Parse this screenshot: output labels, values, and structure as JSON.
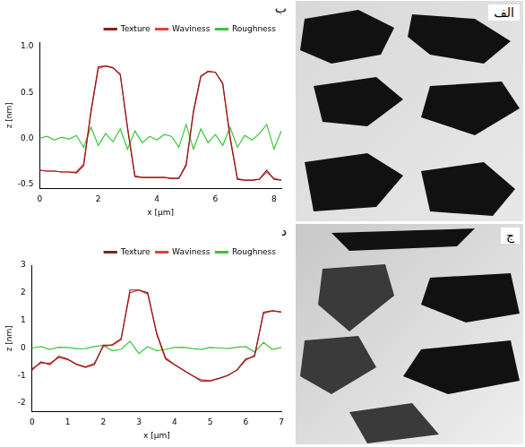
{
  "chart_data": [
    {
      "panel": "ب",
      "type": "line",
      "x_label": "x [µm]",
      "y_label": "z [nm]",
      "x": [
        0,
        0.25,
        0.5,
        0.75,
        1,
        1.25,
        1.5,
        1.75,
        2,
        2.25,
        2.5,
        2.75,
        3,
        3.25,
        3.5,
        3.75,
        4,
        4.25,
        4.5,
        4.75,
        5,
        5.25,
        5.5,
        5.75,
        6,
        6.25,
        6.5,
        6.75,
        7,
        7.25,
        7.5,
        7.75,
        8,
        8.25
      ],
      "series": [
        {
          "name": "Texture",
          "color": "#8b1c1c",
          "values": [
            -0.35,
            -0.36,
            -0.36,
            -0.37,
            -0.37,
            -0.38,
            -0.3,
            0.3,
            0.78,
            0.79,
            0.77,
            0.7,
            0.1,
            -0.42,
            -0.43,
            -0.43,
            -0.43,
            -0.43,
            -0.44,
            -0.44,
            -0.3,
            0.3,
            0.68,
            0.73,
            0.72,
            0.6,
            0,
            -0.45,
            -0.46,
            -0.46,
            -0.45,
            -0.35,
            -0.45,
            -0.46
          ]
        },
        {
          "name": "Waviness",
          "color": "#e0413a",
          "values": [
            -0.35,
            -0.36,
            -0.36,
            -0.37,
            -0.37,
            -0.37,
            -0.28,
            0.28,
            0.76,
            0.79,
            0.77,
            0.69,
            0.12,
            -0.41,
            -0.43,
            -0.43,
            -0.43,
            -0.43,
            -0.44,
            -0.44,
            -0.28,
            0.28,
            0.67,
            0.73,
            0.72,
            0.59,
            0.02,
            -0.44,
            -0.46,
            -0.46,
            -0.45,
            -0.37,
            -0.44,
            -0.46
          ]
        },
        {
          "name": "Roughness",
          "color": "#3cc43c",
          "values": [
            0,
            0.02,
            -0.02,
            0.01,
            -0.01,
            0.03,
            -0.1,
            0.12,
            -0.08,
            0.05,
            -0.04,
            0.1,
            -0.12,
            0.08,
            -0.05,
            0.02,
            -0.02,
            0.04,
            0.02,
            -0.1,
            0.15,
            -0.12,
            0.1,
            -0.05,
            0.04,
            -0.08,
            0.12,
            -0.1,
            0.03,
            -0.02,
            0.05,
            0.15,
            -0.12,
            0.08
          ]
        }
      ],
      "xlim": [
        0,
        8.25
      ],
      "xticks": [
        0,
        2,
        4,
        6,
        8
      ],
      "ylim": [
        -0.55,
        1.05
      ],
      "yticks": [
        -0.5,
        {
          "value": 0,
          "label": "0.0"
        },
        0.5,
        {
          "value": 1,
          "label": "1.0"
        }
      ],
      "legend": "top-right",
      "grid": false
    },
    {
      "panel": "د",
      "type": "line",
      "x_label": "x [µm]",
      "y_label": "z [nm]",
      "x": [
        0,
        0.25,
        0.5,
        0.75,
        1,
        1.25,
        1.5,
        1.75,
        2,
        2.25,
        2.5,
        2.75,
        3,
        3.25,
        3.5,
        3.75,
        4,
        4.25,
        4.5,
        4.75,
        5,
        5.25,
        5.5,
        5.75,
        6,
        6.25,
        6.5,
        6.75,
        7
      ],
      "series": [
        {
          "name": "Texture",
          "color": "#8b1c1c",
          "values": [
            -0.8,
            -0.5,
            -0.6,
            -0.3,
            -0.4,
            -0.6,
            -0.7,
            -0.6,
            0.1,
            0.1,
            0.3,
            2.1,
            2.1,
            2.0,
            0.5,
            -0.4,
            -0.6,
            -0.8,
            -1.0,
            -1.2,
            -1.2,
            -1.1,
            -1.0,
            -0.8,
            -0.4,
            -0.3,
            1.3,
            1.35,
            1.3
          ]
        },
        {
          "name": "Waviness",
          "color": "#e0413a",
          "values": [
            -0.75,
            -0.55,
            -0.55,
            -0.35,
            -0.42,
            -0.58,
            -0.68,
            -0.55,
            0.05,
            0.12,
            0.35,
            2.0,
            2.1,
            1.95,
            0.55,
            -0.35,
            -0.6,
            -0.8,
            -1.0,
            -1.15,
            -1.18,
            -1.1,
            -0.98,
            -0.8,
            -0.45,
            -0.25,
            1.25,
            1.35,
            1.3
          ]
        },
        {
          "name": "Roughness",
          "color": "#3cc43c",
          "values": [
            0,
            0.05,
            -0.05,
            0.03,
            0.02,
            -0.03,
            -0.02,
            0.05,
            0.1,
            -0.1,
            -0.05,
            0.25,
            -0.2,
            0.05,
            -0.1,
            -0.05,
            0.02,
            0.03,
            -0.02,
            -0.05,
            0.02,
            0,
            -0.02,
            0.03,
            0.05,
            -0.15,
            0.2,
            -0.05,
            0.02
          ]
        }
      ],
      "xlim": [
        0,
        7
      ],
      "xticks": [
        0,
        1,
        2,
        3,
        4,
        5,
        6,
        7
      ],
      "ylim": [
        -2.3,
        3
      ],
      "yticks": [
        -2,
        -1,
        0,
        1,
        2,
        3
      ],
      "legend": "top-right",
      "grid": false
    }
  ],
  "images": [
    {
      "panel": "الف"
    },
    {
      "panel": "ج"
    }
  ]
}
